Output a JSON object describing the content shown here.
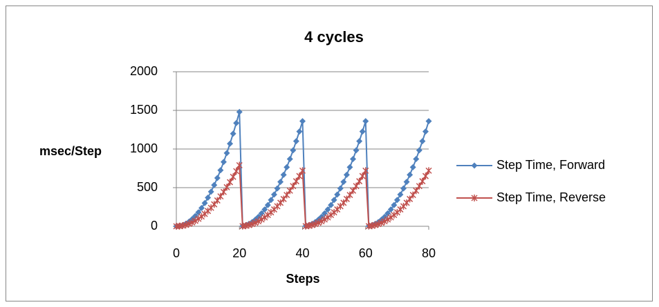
{
  "chart_data": {
    "type": "line",
    "title": "4 cycles",
    "x_label": "Steps",
    "y_label": "msec/Step",
    "x": [
      0,
      1,
      2,
      3,
      4,
      5,
      6,
      7,
      8,
      9,
      10,
      11,
      12,
      13,
      14,
      15,
      16,
      17,
      18,
      19,
      20,
      21,
      22,
      23,
      24,
      25,
      26,
      27,
      28,
      29,
      30,
      31,
      32,
      33,
      34,
      35,
      36,
      37,
      38,
      39,
      40,
      41,
      42,
      43,
      44,
      45,
      46,
      47,
      48,
      49,
      50,
      51,
      52,
      53,
      54,
      55,
      56,
      57,
      58,
      59,
      60,
      61,
      62,
      63,
      64,
      65,
      66,
      67,
      68,
      69,
      70,
      71,
      72,
      73,
      74,
      75,
      76,
      77,
      78,
      79,
      80
    ],
    "series": [
      {
        "name": "Step Time, Forward",
        "color": "#4f81bd",
        "marker": "diamond",
        "values": [
          0,
          4,
          15,
          33,
          59,
          93,
          133,
          181,
          237,
          300,
          370,
          448,
          533,
          625,
          725,
          833,
          947,
          1069,
          1199,
          1336,
          1480,
          3,
          14,
          31,
          54,
          85,
          122,
          167,
          218,
          275,
          340,
          411,
          490,
          575,
          666,
          765,
          870,
          983,
          1102,
          1227,
          1360,
          3,
          14,
          31,
          54,
          85,
          122,
          167,
          218,
          275,
          340,
          411,
          490,
          575,
          666,
          765,
          870,
          983,
          1102,
          1227,
          1360,
          3,
          14,
          31,
          54,
          85,
          122,
          167,
          218,
          275,
          340,
          411,
          490,
          575,
          666,
          765,
          870,
          983,
          1102,
          1227,
          1360
        ]
      },
      {
        "name": "Step Time, Reverse",
        "color": "#c0504d",
        "marker": "star",
        "values": [
          0,
          2,
          8,
          18,
          32,
          49,
          71,
          97,
          126,
          160,
          198,
          239,
          284,
          334,
          387,
          444,
          506,
          571,
          640,
          713,
          790,
          2,
          7,
          16,
          29,
          45,
          65,
          88,
          115,
          146,
          180,
          218,
          259,
          304,
          353,
          405,
          461,
          520,
          583,
          650,
          720,
          2,
          7,
          16,
          29,
          45,
          65,
          88,
          115,
          146,
          180,
          218,
          259,
          304,
          353,
          405,
          461,
          520,
          583,
          650,
          720,
          2,
          7,
          16,
          29,
          45,
          65,
          88,
          115,
          146,
          180,
          218,
          259,
          304,
          353,
          405,
          461,
          520,
          583,
          650,
          720
        ]
      }
    ],
    "xlim": [
      0,
      80
    ],
    "xticks": [
      0,
      20,
      40,
      60,
      80
    ],
    "ylim": [
      0,
      2000
    ],
    "yticks": [
      0,
      500,
      1000,
      1500,
      2000
    ],
    "grid": true,
    "legend": "right"
  }
}
